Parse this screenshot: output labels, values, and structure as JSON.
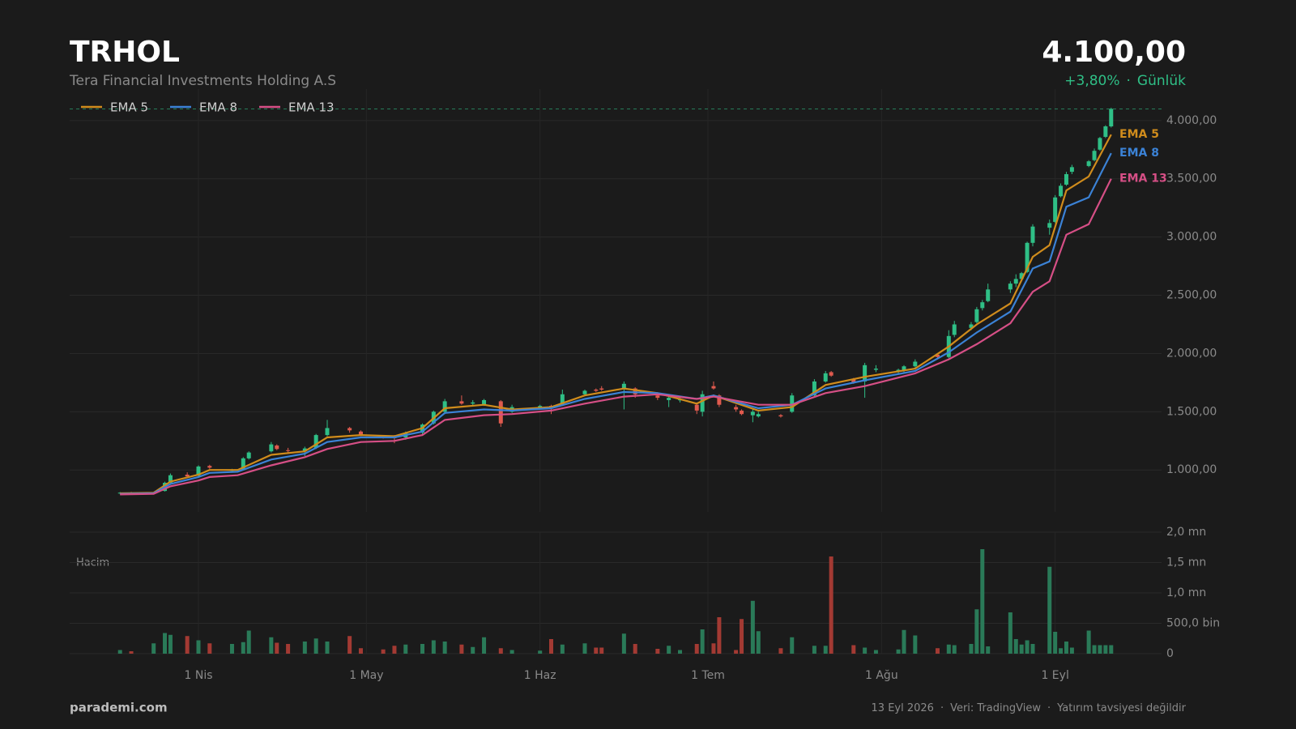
{
  "header": {
    "title": "TRHOL",
    "subtitle": "Tera Financial Investments Holding A.S",
    "price": "4.100,00",
    "change": "+3,80%",
    "separator": "·",
    "period": "Günlük"
  },
  "footer": {
    "brand": "parademi.com",
    "notes": [
      "13 Eyl 2026",
      "Veri: TradingView",
      "Yatırım tavsiyesi değildir"
    ],
    "separator": "·"
  },
  "chart_data": [
    {
      "type": "candlestick",
      "xlim": [
        "2026-03-09",
        "2026-09-20"
      ],
      "xticks": [
        {
          "value": "2026-04-01",
          "label": "1 Nis"
        },
        {
          "value": "2026-05-01",
          "label": "1 May"
        },
        {
          "value": "2026-06-01",
          "label": "1 Haz"
        },
        {
          "value": "2026-07-01",
          "label": "1 Tem"
        },
        {
          "value": "2026-08-01",
          "label": "1 Ağu"
        },
        {
          "value": "2026-09-01",
          "label": "1 Eyl"
        }
      ],
      "ylim": [
        640,
        4270
      ],
      "yticks": [
        {
          "value": 1000,
          "label": "1.000,00"
        },
        {
          "value": 1500,
          "label": "1.500,00"
        },
        {
          "value": 2000,
          "label": "2.000,00"
        },
        {
          "value": 2500,
          "label": "2.500,00"
        },
        {
          "value": 3000,
          "label": "3.000,00"
        },
        {
          "value": 3500,
          "label": "3.500,00"
        },
        {
          "value": 4000,
          "label": "4.000,00"
        }
      ],
      "grid": true,
      "legend": "top-left",
      "up_color": "#2fbf86",
      "down_color": "#e05a4e",
      "current_price": 4100,
      "candles": {
        "x": [
          "2026-03-18",
          "2026-03-20",
          "2026-03-24",
          "2026-03-26",
          "2026-03-27",
          "2026-03-30",
          "2026-04-01",
          "2026-04-03",
          "2026-04-07",
          "2026-04-09",
          "2026-04-10",
          "2026-04-14",
          "2026-04-15",
          "2026-04-17",
          "2026-04-20",
          "2026-04-22",
          "2026-04-24",
          "2026-04-28",
          "2026-04-30",
          "2026-05-04",
          "2026-05-06",
          "2026-05-08",
          "2026-05-11",
          "2026-05-13",
          "2026-05-15",
          "2026-05-18",
          "2026-05-20",
          "2026-05-22",
          "2026-05-25",
          "2026-05-27",
          "2026-06-01",
          "2026-06-03",
          "2026-06-05",
          "2026-06-09",
          "2026-06-11",
          "2026-06-12",
          "2026-06-16",
          "2026-06-18",
          "2026-06-22",
          "2026-06-24",
          "2026-06-26",
          "2026-06-29",
          "2026-06-30",
          "2026-07-02",
          "2026-07-03",
          "2026-07-06",
          "2026-07-07",
          "2026-07-09",
          "2026-07-10",
          "2026-07-14",
          "2026-07-16",
          "2026-07-20",
          "2026-07-22",
          "2026-07-23",
          "2026-07-27",
          "2026-07-29",
          "2026-07-31",
          "2026-08-04",
          "2026-08-05",
          "2026-08-07",
          "2026-08-11",
          "2026-08-13",
          "2026-08-14",
          "2026-08-17",
          "2026-08-18",
          "2026-08-19",
          "2026-08-20",
          "2026-08-24",
          "2026-08-25",
          "2026-08-26",
          "2026-08-27",
          "2026-08-28",
          "2026-08-31",
          "2026-09-01",
          "2026-09-02",
          "2026-09-03",
          "2026-09-04",
          "2026-09-07",
          "2026-09-08",
          "2026-09-09",
          "2026-09-10",
          "2026-09-11"
        ],
        "open": [
          800,
          805,
          800,
          820,
          890,
          960,
          950,
          1035,
          1000,
          1000,
          1100,
          1160,
          1210,
          1170,
          1160,
          1190,
          1300,
          1360,
          1330,
          1290,
          1280,
          1280,
          1320,
          1400,
          1500,
          1590,
          1570,
          1560,
          1590,
          1500,
          1530,
          1550,
          1560,
          1650,
          1690,
          1700,
          1700,
          1700,
          1640,
          1600,
          1600,
          1560,
          1500,
          1720,
          1640,
          1540,
          1510,
          1470,
          1460,
          1470,
          1500,
          1640,
          1760,
          1840,
          1780,
          1760,
          1860,
          1850,
          1860,
          1890,
          1990,
          1970,
          2160,
          2220,
          2270,
          2390,
          2450,
          2550,
          2600,
          2640,
          2700,
          2950,
          3080,
          3130,
          3350,
          3450,
          3560,
          3610,
          3660,
          3750,
          3860,
          3950
        ],
        "high": [
          810,
          812,
          808,
          900,
          970,
          980,
          1040,
          1045,
          1010,
          1110,
          1160,
          1240,
          1220,
          1190,
          1200,
          1310,
          1430,
          1370,
          1340,
          1300,
          1300,
          1330,
          1400,
          1510,
          1610,
          1640,
          1600,
          1610,
          1600,
          1560,
          1560,
          1560,
          1690,
          1690,
          1700,
          1720,
          1760,
          1710,
          1660,
          1640,
          1620,
          1580,
          1680,
          1760,
          1650,
          1560,
          1520,
          1530,
          1500,
          1480,
          1660,
          1780,
          1850,
          1850,
          1790,
          1920,
          1900,
          1870,
          1900,
          1950,
          2000,
          2200,
          2280,
          2270,
          2400,
          2460,
          2600,
          2620,
          2680,
          2700,
          2960,
          3110,
          3150,
          3360,
          3460,
          3560,
          3620,
          3660,
          3760,
          3860,
          3960,
          4110
        ],
        "low": [
          795,
          798,
          790,
          815,
          880,
          940,
          945,
          1010,
          985,
          995,
          1090,
          1150,
          1170,
          1140,
          1120,
          1180,
          1290,
          1320,
          1290,
          1270,
          1230,
          1260,
          1300,
          1390,
          1480,
          1560,
          1550,
          1550,
          1370,
          1490,
          1520,
          1480,
          1550,
          1640,
          1670,
          1680,
          1520,
          1620,
          1600,
          1540,
          1580,
          1480,
          1460,
          1690,
          1540,
          1500,
          1470,
          1410,
          1450,
          1450,
          1490,
          1630,
          1750,
          1800,
          1740,
          1620,
          1840,
          1830,
          1840,
          1880,
          1950,
          1960,
          2140,
          2200,
          2260,
          2370,
          2440,
          2520,
          2570,
          2630,
          2690,
          2920,
          3020,
          3120,
          3340,
          3440,
          3540,
          3600,
          3650,
          3740,
          3850,
          3940
        ],
        "close": [
          805,
          800,
          805,
          890,
          955,
          945,
          1030,
          1020,
          1000,
          1100,
          1150,
          1220,
          1180,
          1165,
          1185,
          1300,
          1360,
          1340,
          1300,
          1280,
          1275,
          1320,
          1390,
          1500,
          1590,
          1570,
          1580,
          1600,
          1400,
          1540,
          1550,
          1540,
          1650,
          1680,
          1680,
          1690,
          1740,
          1650,
          1620,
          1620,
          1605,
          1510,
          1650,
          1700,
          1560,
          1520,
          1480,
          1500,
          1480,
          1460,
          1640,
          1760,
          1830,
          1810,
          1750,
          1900,
          1870,
          1860,
          1890,
          1930,
          1970,
          2150,
          2250,
          2250,
          2380,
          2440,
          2550,
          2600,
          2640,
          2690,
          2950,
          3090,
          3120,
          3340,
          3440,
          3540,
          3600,
          3650,
          3740,
          3850,
          3950,
          4100
        ],
        "volume": [
          60000,
          40000,
          170000,
          340000,
          310000,
          290000,
          220000,
          170000,
          160000,
          190000,
          380000,
          270000,
          180000,
          160000,
          200000,
          250000,
          200000,
          290000,
          90000,
          70000,
          130000,
          150000,
          160000,
          220000,
          200000,
          150000,
          110000,
          270000,
          90000,
          60000,
          50000,
          240000,
          150000,
          170000,
          100000,
          100000,
          330000,
          160000,
          80000,
          130000,
          60000,
          160000,
          400000,
          170000,
          600000,
          60000,
          570000,
          870000,
          370000,
          90000,
          270000,
          130000,
          130000,
          1600000,
          140000,
          100000,
          60000,
          70000,
          390000,
          300000,
          90000,
          150000,
          140000,
          160000,
          730000,
          1720000,
          120000,
          680000,
          240000,
          150000,
          220000,
          160000,
          1430000,
          360000,
          90000,
          200000,
          100000,
          380000,
          140000,
          140000,
          140000,
          140000
        ]
      },
      "series": [
        {
          "name": "EMA 5",
          "color": "#d08c1c",
          "x": [
            "2026-03-18",
            "2026-03-24",
            "2026-03-27",
            "2026-04-01",
            "2026-04-03",
            "2026-04-08",
            "2026-04-14",
            "2026-04-20",
            "2026-04-24",
            "2026-04-30",
            "2026-05-06",
            "2026-05-11",
            "2026-05-15",
            "2026-05-22",
            "2026-05-27",
            "2026-06-03",
            "2026-06-09",
            "2026-06-16",
            "2026-06-22",
            "2026-06-29",
            "2026-07-02",
            "2026-07-10",
            "2026-07-16",
            "2026-07-22",
            "2026-07-29",
            "2026-08-07",
            "2026-08-13",
            "2026-08-18",
            "2026-08-24",
            "2026-08-28",
            "2026-08-31",
            "2026-09-03",
            "2026-09-07",
            "2026-09-11"
          ],
          "values": [
            800,
            805,
            900,
            960,
            1000,
            1000,
            1130,
            1160,
            1280,
            1300,
            1290,
            1360,
            1530,
            1560,
            1520,
            1540,
            1640,
            1700,
            1660,
            1570,
            1640,
            1510,
            1540,
            1730,
            1800,
            1870,
            2060,
            2250,
            2430,
            2830,
            2930,
            3400,
            3520,
            3880
          ]
        },
        {
          "name": "EMA 8",
          "color": "#3b82d6",
          "x": [
            "2026-03-18",
            "2026-03-24",
            "2026-03-27",
            "2026-04-01",
            "2026-04-03",
            "2026-04-08",
            "2026-04-14",
            "2026-04-20",
            "2026-04-24",
            "2026-04-30",
            "2026-05-06",
            "2026-05-11",
            "2026-05-15",
            "2026-05-22",
            "2026-05-27",
            "2026-06-03",
            "2026-06-09",
            "2026-06-16",
            "2026-06-22",
            "2026-06-29",
            "2026-07-02",
            "2026-07-10",
            "2026-07-16",
            "2026-07-22",
            "2026-07-29",
            "2026-08-07",
            "2026-08-13",
            "2026-08-18",
            "2026-08-24",
            "2026-08-28",
            "2026-08-31",
            "2026-09-03",
            "2026-09-07",
            "2026-09-11"
          ],
          "values": [
            795,
            800,
            880,
            940,
            975,
            985,
            1090,
            1140,
            1240,
            1280,
            1280,
            1330,
            1490,
            1520,
            1510,
            1530,
            1610,
            1670,
            1660,
            1610,
            1640,
            1530,
            1560,
            1700,
            1770,
            1850,
            2010,
            2180,
            2360,
            2730,
            2790,
            3260,
            3340,
            3720
          ]
        },
        {
          "name": "EMA 13",
          "color": "#d64f86",
          "x": [
            "2026-03-18",
            "2026-03-24",
            "2026-03-27",
            "2026-04-01",
            "2026-04-03",
            "2026-04-08",
            "2026-04-14",
            "2026-04-20",
            "2026-04-24",
            "2026-04-30",
            "2026-05-06",
            "2026-05-11",
            "2026-05-15",
            "2026-05-22",
            "2026-05-27",
            "2026-06-03",
            "2026-06-09",
            "2026-06-16",
            "2026-06-22",
            "2026-06-29",
            "2026-07-02",
            "2026-07-10",
            "2026-07-16",
            "2026-07-22",
            "2026-07-29",
            "2026-08-07",
            "2026-08-13",
            "2026-08-18",
            "2026-08-24",
            "2026-08-28",
            "2026-08-31",
            "2026-09-03",
            "2026-09-07",
            "2026-09-11"
          ],
          "values": [
            790,
            795,
            860,
            910,
            940,
            955,
            1040,
            1110,
            1180,
            1240,
            1250,
            1300,
            1430,
            1470,
            1480,
            1510,
            1570,
            1630,
            1650,
            1610,
            1630,
            1560,
            1560,
            1660,
            1720,
            1830,
            1950,
            2080,
            2260,
            2530,
            2620,
            3020,
            3110,
            3500
          ]
        }
      ]
    },
    {
      "type": "volume",
      "title": "Hacim",
      "ylim": [
        0,
        2000000
      ],
      "yticks": [
        0,
        {
          "value": 500000,
          "label": "500,0 bin"
        },
        {
          "value": 1000000,
          "label": "1,0 mn"
        },
        {
          "value": 1500000,
          "label": "1,5 mn"
        },
        {
          "value": 2000000,
          "label": "2,0 mn"
        }
      ],
      "up_color": "#2a7a58",
      "down_color": "#a33a33"
    }
  ]
}
